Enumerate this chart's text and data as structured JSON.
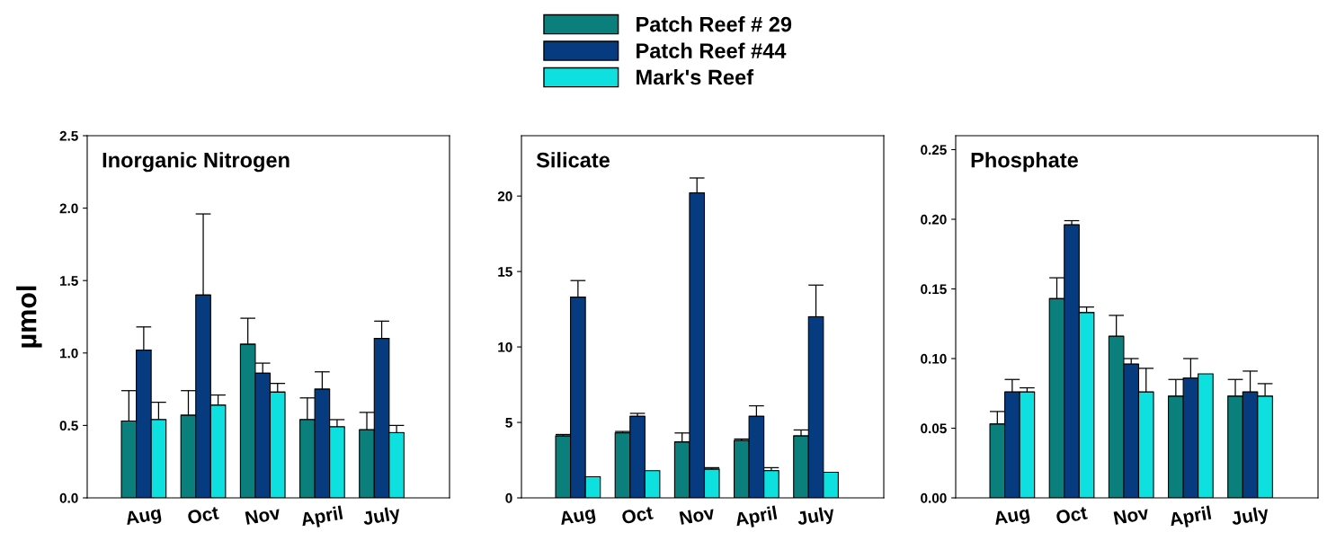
{
  "chart_data": [
    {
      "type": "bar",
      "title": "Inorganic Nitrogen",
      "ylabel": "µmol",
      "legend": "top",
      "categories": [
        "Aug",
        "Oct",
        "Nov",
        "April",
        "July"
      ],
      "ylim": [
        0,
        2.5
      ],
      "yticks": [
        {
          "value": 0,
          "label": "0.0"
        },
        {
          "value": 0.5,
          "label": "0.5"
        },
        {
          "value": 1,
          "label": "1.0"
        },
        {
          "value": 1.5,
          "label": "1.5"
        },
        {
          "value": 2,
          "label": "2.0"
        },
        {
          "value": 2.5,
          "label": "2.5"
        }
      ],
      "grid": false,
      "series": [
        {
          "name": "Patch Reef # 29",
          "color": "#0a7f7b",
          "values": [
            0.53,
            0.57,
            1.06,
            0.54,
            0.47
          ],
          "errors": [
            [
              0.53,
              0.74
            ],
            [
              0.57,
              0.74
            ],
            [
              1.06,
              1.24
            ],
            [
              0.54,
              0.69
            ],
            [
              0.47,
              0.59
            ]
          ]
        },
        {
          "name": "Patch Reef #44",
          "color": "#073b80",
          "values": [
            1.02,
            1.4,
            0.86,
            0.75,
            1.1
          ],
          "errors": [
            [
              1.02,
              1.18
            ],
            [
              1.4,
              1.96
            ],
            [
              0.86,
              0.93
            ],
            [
              0.75,
              0.87
            ],
            [
              1.1,
              1.22
            ]
          ]
        },
        {
          "name": "Mark's Reef",
          "color": "#0ee0e0",
          "values": [
            0.54,
            0.64,
            0.73,
            0.49,
            0.45
          ],
          "errors": [
            [
              0.54,
              0.66
            ],
            [
              0.64,
              0.71
            ],
            [
              0.73,
              0.79
            ],
            [
              0.49,
              0.54
            ],
            [
              0.45,
              0.5
            ]
          ]
        }
      ]
    },
    {
      "type": "bar",
      "title": "Silicate",
      "categories": [
        "Aug",
        "Oct",
        "Nov",
        "April",
        "July"
      ],
      "ylim": [
        0,
        24
      ],
      "yticks": [
        0,
        5,
        10,
        15,
        20
      ],
      "grid": false,
      "series": [
        {
          "color": "#0a7f7b",
          "values": [
            4.1,
            4.3,
            3.7,
            3.8,
            4.1
          ],
          "errors": [
            [
              4.1,
              4.2
            ],
            [
              4.3,
              4.4
            ],
            [
              3.7,
              4.3
            ],
            [
              3.8,
              3.9
            ],
            [
              4.1,
              4.5
            ]
          ]
        },
        {
          "color": "#073b80",
          "values": [
            13.3,
            5.4,
            20.2,
            5.4,
            12.0
          ],
          "errors": [
            [
              13.3,
              14.4
            ],
            [
              5.4,
              5.6
            ],
            [
              20.2,
              21.2
            ],
            [
              5.4,
              6.1
            ],
            [
              12.0,
              14.1
            ]
          ]
        },
        {
          "color": "#0ee0e0",
          "values": [
            1.4,
            1.8,
            1.9,
            1.8,
            1.7
          ],
          "errors": [
            null,
            null,
            [
              1.9,
              2.0
            ],
            [
              1.8,
              2.0
            ],
            null
          ]
        }
      ]
    },
    {
      "type": "bar",
      "title": "Phosphate",
      "categories": [
        "Aug",
        "Oct",
        "Nov",
        "April",
        "July"
      ],
      "ylim": [
        0,
        0.26
      ],
      "yticks": [
        {
          "value": 0,
          "label": "0.00"
        },
        {
          "value": 0.05,
          "label": "0.05"
        },
        {
          "value": 0.1,
          "label": "0.10"
        },
        {
          "value": 0.15,
          "label": "0.15"
        },
        {
          "value": 0.2,
          "label": "0.20"
        },
        {
          "value": 0.25,
          "label": "0.25"
        }
      ],
      "grid": false,
      "series": [
        {
          "color": "#0a7f7b",
          "values": [
            0.053,
            0.143,
            0.116,
            0.073,
            0.073
          ],
          "errors": [
            [
              0.053,
              0.062
            ],
            [
              0.143,
              0.158
            ],
            [
              0.116,
              0.131
            ],
            [
              0.073,
              0.085
            ],
            [
              0.073,
              0.085
            ]
          ]
        },
        {
          "color": "#073b80",
          "values": [
            0.076,
            0.196,
            0.096,
            0.086,
            0.076
          ],
          "errors": [
            [
              0.076,
              0.085
            ],
            [
              0.196,
              0.199
            ],
            [
              0.096,
              0.1
            ],
            [
              0.086,
              0.1
            ],
            [
              0.076,
              0.091
            ]
          ]
        },
        {
          "color": "#0ee0e0",
          "values": [
            0.076,
            0.133,
            0.076,
            0.089,
            0.073
          ],
          "errors": [
            [
              0.076,
              0.079
            ],
            [
              0.133,
              0.137
            ],
            [
              0.076,
              0.093
            ],
            null,
            [
              0.073,
              0.082
            ]
          ]
        }
      ]
    }
  ]
}
